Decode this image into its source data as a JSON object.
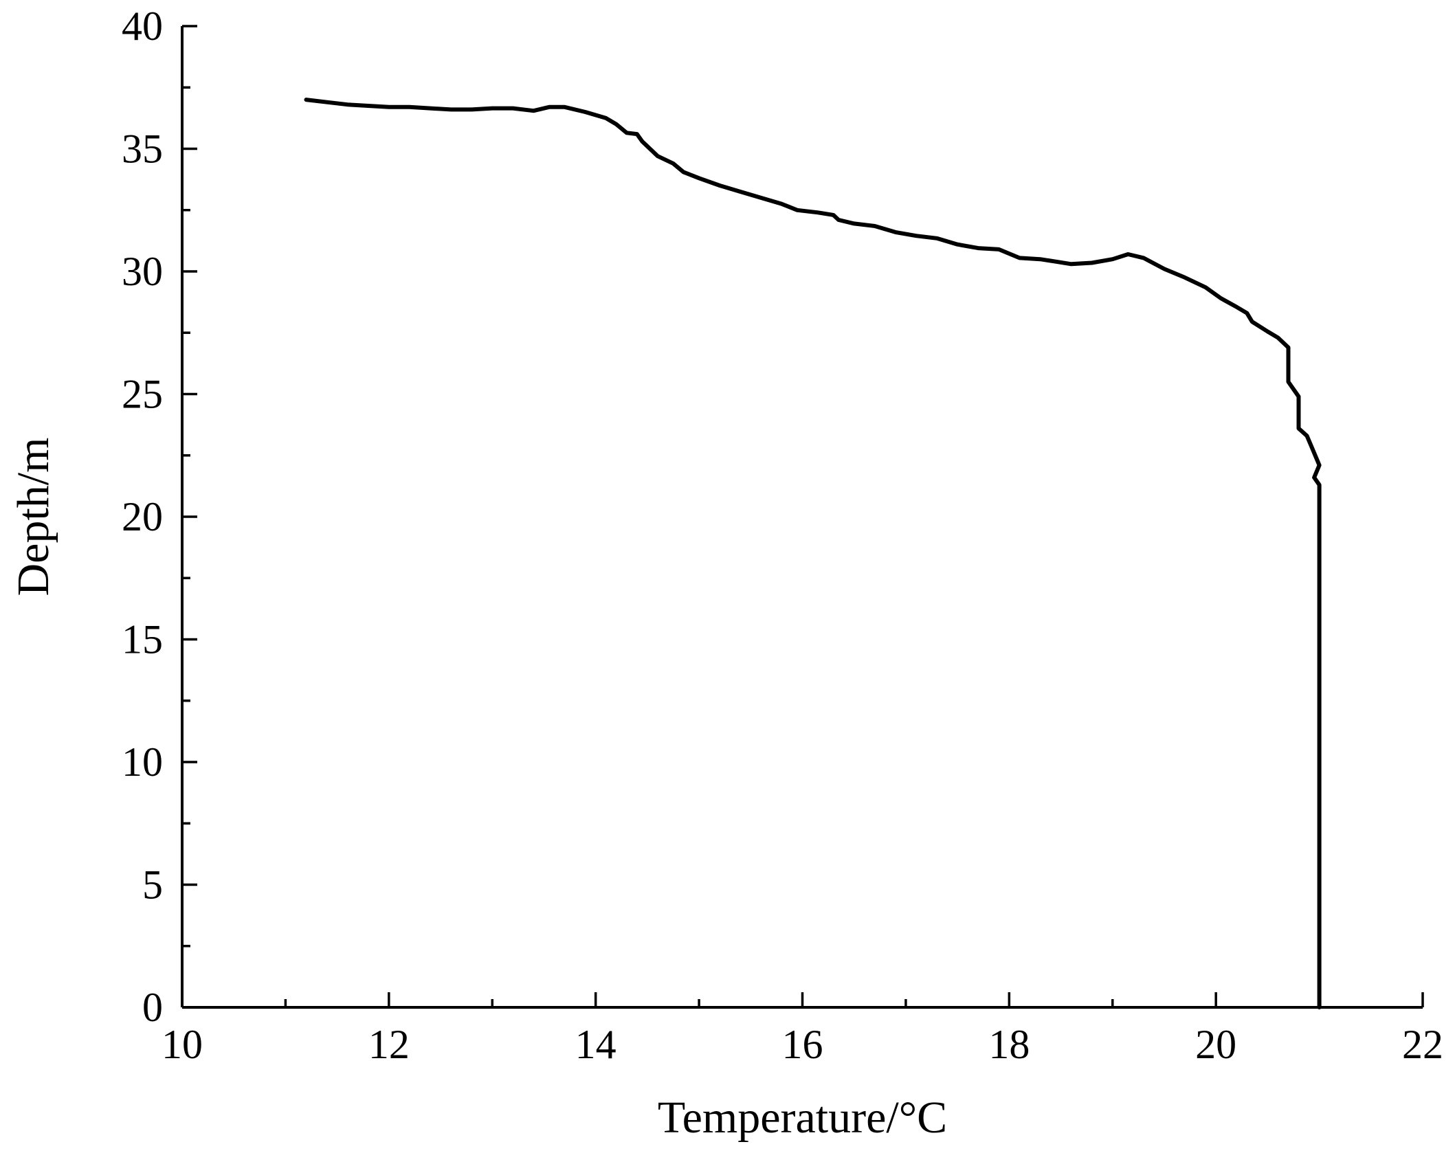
{
  "chart_data": {
    "type": "line",
    "title": "",
    "xlabel": "Temperature/°C",
    "ylabel": "Depth/m",
    "xlim": [
      10,
      22
    ],
    "ylim": [
      0,
      40
    ],
    "x_ticks": [
      10,
      12,
      14,
      16,
      18,
      20,
      22
    ],
    "y_ticks": [
      0,
      5,
      10,
      15,
      20,
      25,
      30,
      35,
      40
    ],
    "x_minor_step": 1,
    "y_minor_step": 2.5,
    "grid": false,
    "legend": "none",
    "line_color": "#000000",
    "series": [
      {
        "points": [
          [
            11.2,
            37.0
          ],
          [
            11.4,
            36.9
          ],
          [
            11.6,
            36.8
          ],
          [
            11.8,
            36.75
          ],
          [
            12.0,
            36.7
          ],
          [
            12.2,
            36.7
          ],
          [
            12.4,
            36.65
          ],
          [
            12.6,
            36.6
          ],
          [
            12.8,
            36.6
          ],
          [
            13.0,
            36.65
          ],
          [
            13.2,
            36.65
          ],
          [
            13.4,
            36.55
          ],
          [
            13.55,
            36.7
          ],
          [
            13.7,
            36.7
          ],
          [
            13.9,
            36.5
          ],
          [
            14.1,
            36.25
          ],
          [
            14.2,
            36.0
          ],
          [
            14.3,
            35.65
          ],
          [
            14.4,
            35.6
          ],
          [
            14.45,
            35.3
          ],
          [
            14.6,
            34.7
          ],
          [
            14.75,
            34.4
          ],
          [
            14.85,
            34.05
          ],
          [
            15.0,
            33.8
          ],
          [
            15.2,
            33.5
          ],
          [
            15.4,
            33.25
          ],
          [
            15.6,
            33.0
          ],
          [
            15.8,
            32.75
          ],
          [
            15.95,
            32.5
          ],
          [
            16.15,
            32.4
          ],
          [
            16.3,
            32.3
          ],
          [
            16.35,
            32.1
          ],
          [
            16.5,
            31.95
          ],
          [
            16.7,
            31.85
          ],
          [
            16.9,
            31.6
          ],
          [
            17.1,
            31.45
          ],
          [
            17.3,
            31.35
          ],
          [
            17.5,
            31.1
          ],
          [
            17.7,
            30.95
          ],
          [
            17.9,
            30.9
          ],
          [
            18.1,
            30.55
          ],
          [
            18.3,
            30.5
          ],
          [
            18.45,
            30.4
          ],
          [
            18.6,
            30.3
          ],
          [
            18.8,
            30.35
          ],
          [
            19.0,
            30.5
          ],
          [
            19.15,
            30.7
          ],
          [
            19.3,
            30.55
          ],
          [
            19.5,
            30.1
          ],
          [
            19.7,
            29.75
          ],
          [
            19.9,
            29.35
          ],
          [
            20.05,
            28.9
          ],
          [
            20.2,
            28.55
          ],
          [
            20.3,
            28.3
          ],
          [
            20.35,
            27.95
          ],
          [
            20.5,
            27.55
          ],
          [
            20.6,
            27.3
          ],
          [
            20.7,
            26.9
          ],
          [
            20.7,
            25.5
          ],
          [
            20.8,
            24.9
          ],
          [
            20.8,
            23.6
          ],
          [
            20.88,
            23.3
          ],
          [
            20.92,
            22.9
          ],
          [
            20.97,
            22.4
          ],
          [
            21.0,
            22.1
          ],
          [
            20.95,
            21.6
          ],
          [
            21.0,
            21.3
          ],
          [
            21.0,
            0.0
          ]
        ]
      }
    ]
  }
}
